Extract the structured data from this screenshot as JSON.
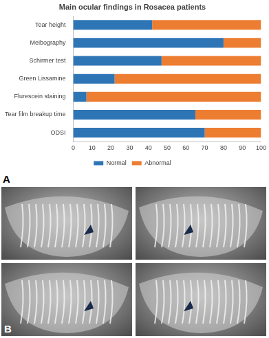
{
  "chart_data": {
    "type": "bar",
    "title": "Main ocular findings in Rosacea patients",
    "orientation": "horizontal",
    "stacked": true,
    "grid": false,
    "legend": "bottom",
    "data_labels": false,
    "categories": [
      "Tear height",
      "Meibography",
      "Schirmer test",
      "Green Lissamine",
      "Flurescein staining",
      "Tear film breakup time",
      "ODSI"
    ],
    "series": [
      {
        "name": "Normal",
        "color": "#2e75b6",
        "values": [
          42,
          80,
          47,
          22,
          7,
          65,
          70
        ]
      },
      {
        "name": "Abnormal",
        "color": "#ed7d31",
        "values": [
          58,
          20,
          53,
          78,
          93,
          35,
          30
        ]
      }
    ],
    "xlim": [
      0,
      100
    ],
    "xticks": [
      0,
      10,
      20,
      30,
      40,
      50,
      60,
      70,
      80,
      90,
      100
    ]
  },
  "panel_labels": [
    "A",
    "B"
  ]
}
